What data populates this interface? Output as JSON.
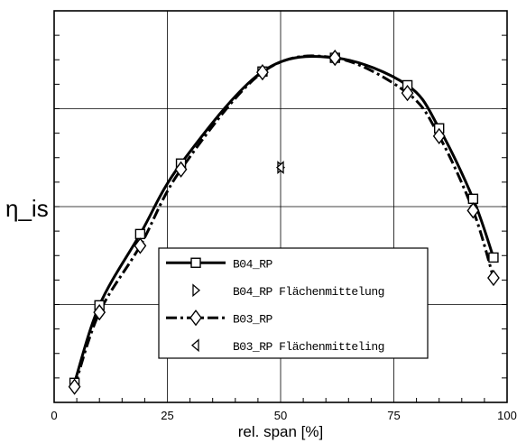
{
  "chart_data": {
    "type": "line",
    "title": "",
    "xlabel": "rel. span [%]",
    "ylabel": "η_is",
    "xlim": [
      0,
      100
    ],
    "ylim": [
      0,
      1
    ],
    "x_ticks": [
      "0",
      "25",
      "50",
      "75",
      "100"
    ],
    "grid": true,
    "legend_position": "lower-center",
    "series": [
      {
        "name": "B04_RP",
        "style": "solid-thick",
        "marker": "square",
        "x": [
          4.5,
          10,
          19,
          28,
          46,
          62,
          78,
          85,
          92.5,
          97
        ],
        "y": [
          0.05,
          0.248,
          0.43,
          0.61,
          0.845,
          0.88,
          0.81,
          0.7,
          0.52,
          0.37
        ]
      },
      {
        "name": "B04_RP Flächenmittelung",
        "style": "marker-only",
        "marker": "triangle-right",
        "x": [
          50
        ],
        "y": [
          0.6
        ]
      },
      {
        "name": "B03_RP",
        "style": "dash-dot-thick",
        "marker": "diamond",
        "x": [
          4.5,
          10,
          19,
          28,
          46,
          62,
          78,
          85,
          92.5,
          97
        ],
        "y": [
          0.04,
          0.23,
          0.4,
          0.595,
          0.843,
          0.88,
          0.79,
          0.68,
          0.49,
          0.318
        ]
      },
      {
        "name": "B03_RP Flächenmitteling",
        "style": "marker-only",
        "marker": "triangle-left",
        "x": [
          50
        ],
        "y": [
          0.6
        ]
      }
    ]
  }
}
